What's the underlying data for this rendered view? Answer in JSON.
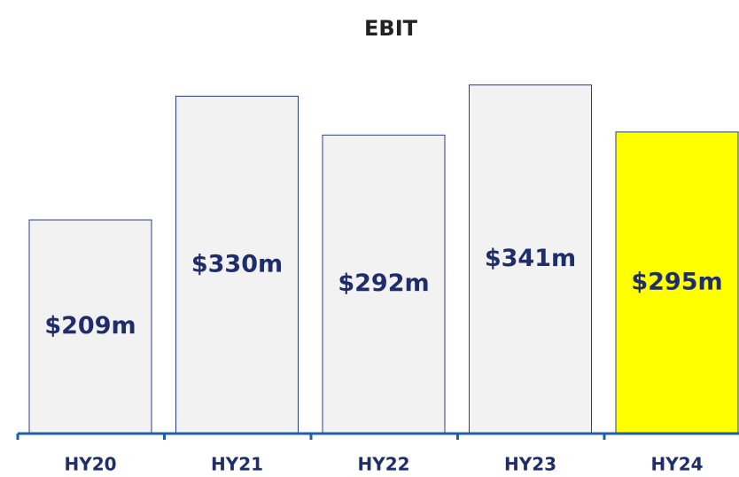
{
  "chart_data": {
    "type": "bar",
    "title": "EBIT",
    "categories": [
      "HY20",
      "HY21",
      "HY22",
      "HY23",
      "HY24"
    ],
    "values": [
      209,
      330,
      292,
      341,
      295
    ],
    "value_labels": [
      "$209m",
      "$330m",
      "$292m",
      "$341m",
      "$295m"
    ],
    "colors": [
      "#f2f2f2",
      "#f2f2f2",
      "#f2f2f2",
      "#f2f2f2",
      "#ffff00"
    ]
  }
}
